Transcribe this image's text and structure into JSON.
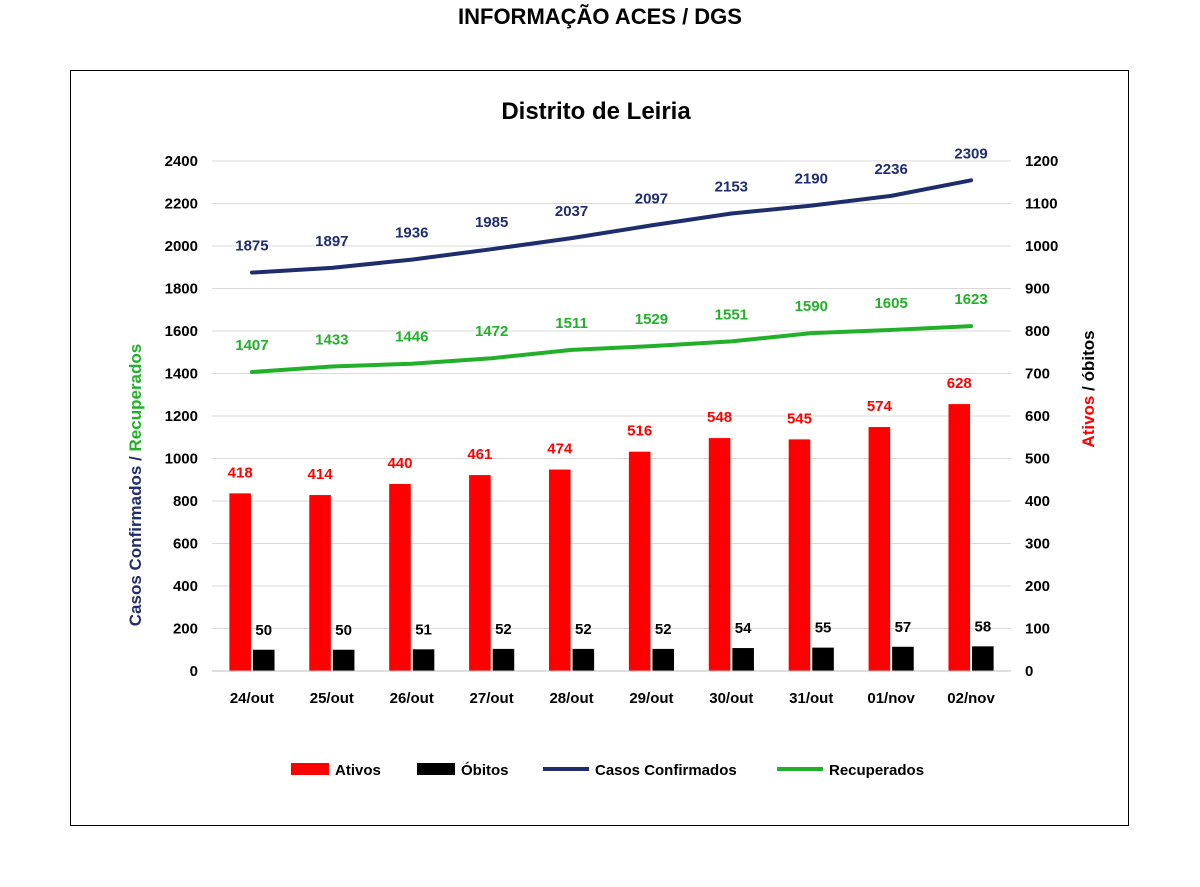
{
  "header": {
    "title": "INFORMAÇÃO ACES / DGS"
  },
  "colors": {
    "ativos": "#ff0000",
    "obitos": "#000000",
    "confirmados": "#1f2d6e",
    "recuperados": "#22b02a"
  },
  "chart_data": {
    "type": "bar",
    "title": "Distrito de Leiria",
    "categories": [
      "24/out",
      "25/out",
      "26/out",
      "27/out",
      "28/out",
      "29/out",
      "30/out",
      "31/out",
      "01/nov",
      "02/nov"
    ],
    "ylabel_left": {
      "part1": "Casos Confirmados / ",
      "part2": "Recuperados"
    },
    "ylabel_right": {
      "part1": "Ativos",
      "part2": " / óbitos"
    },
    "ylim_left": [
      0,
      2400
    ],
    "yticks_left": [
      0,
      200,
      400,
      600,
      800,
      1000,
      1200,
      1400,
      1600,
      1800,
      2000,
      2200,
      2400
    ],
    "ylim_right": [
      0,
      1200
    ],
    "yticks_right": [
      0,
      100,
      200,
      300,
      400,
      500,
      600,
      700,
      800,
      900,
      1000,
      1100,
      1200
    ],
    "grid": true,
    "legend_position": "bottom",
    "series": [
      {
        "name": "Ativos",
        "type": "bar",
        "axis": "right",
        "values": [
          418,
          414,
          440,
          461,
          474,
          516,
          548,
          545,
          574,
          628
        ]
      },
      {
        "name": "Óbitos",
        "type": "bar",
        "axis": "right",
        "values": [
          50,
          50,
          51,
          52,
          52,
          52,
          54,
          55,
          57,
          58
        ]
      },
      {
        "name": "Casos Confirmados",
        "type": "line",
        "axis": "left",
        "values": [
          1875,
          1897,
          1936,
          1985,
          2037,
          2097,
          2153,
          2190,
          2236,
          2309
        ]
      },
      {
        "name": "Recuperados",
        "type": "line",
        "axis": "left",
        "values": [
          1407,
          1433,
          1446,
          1472,
          1511,
          1529,
          1551,
          1590,
          1605,
          1623
        ]
      }
    ]
  }
}
